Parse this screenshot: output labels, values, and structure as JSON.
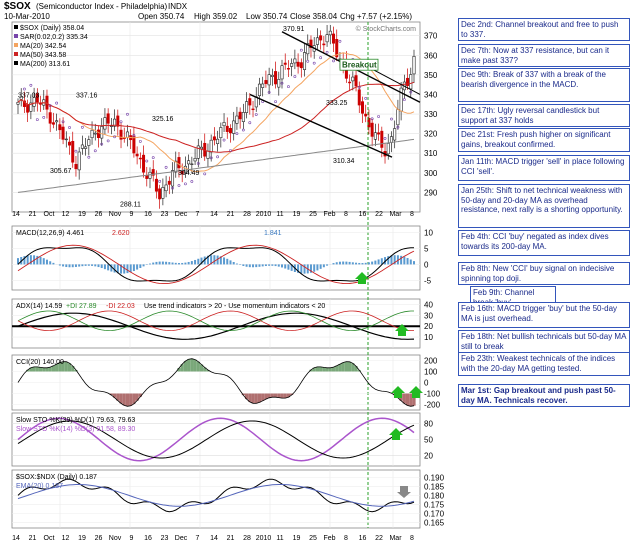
{
  "header": {
    "symbol": "$SOX",
    "name": "(Semiconductor Index - Philadelphia)",
    "exchange": "INDX",
    "date": "10-Mar-2010",
    "open": "Open 350.74",
    "high": "High 359.02",
    "low": "Low 350.74",
    "close": "Close 358.04",
    "chg": "Chg +7.57 (+2.15%)",
    "watermark": "© StockCharts.com"
  },
  "chart_data": [
    {
      "type": "candlestick",
      "legend": [
        "$SOX (Daily) 358.04",
        "SAR(0.02,0.2) 335.34",
        "MA(20) 342.54",
        "MA(50) 343.58",
        "MA(200) 313.61"
      ],
      "y_ticks": [
        290,
        300,
        310,
        320,
        330,
        340,
        350,
        360,
        370
      ],
      "ylim": [
        280,
        377
      ],
      "annotations": [
        "337.03",
        "337.16",
        "325.16",
        "305.67",
        "288.11",
        "304.49",
        "370.91",
        "333.25",
        "310.34",
        "Breakout"
      ],
      "colors": {
        "up": "#222222",
        "down": "#cc0000",
        "ma20": "#f4a460",
        "ma50": "#cc2222",
        "ma200": "#888888",
        "sar": "#7744aa"
      }
    },
    {
      "type": "line",
      "legend": [
        "MACD(12,26,9) 4.461",
        "2.620",
        "1.841"
      ],
      "y_ticks": [
        10,
        5,
        0,
        -5
      ]
    },
    {
      "type": "line",
      "legend": [
        "ADX(14) 14.59",
        "+DI 27.89",
        "-DI 22.03",
        "Use trend indicators > 20 - Use momentum indicators < 20"
      ],
      "y_ticks": [
        40,
        30,
        20,
        10
      ]
    },
    {
      "type": "area",
      "legend": [
        "CCI(20) 140.00"
      ],
      "y_ticks": [
        200,
        100,
        0,
        -100,
        -200
      ]
    },
    {
      "type": "line",
      "legend": [
        "Slow STO %K(39) %D(1) 79.63, 79.63",
        "Slow STO %K(14) %D(3) 91.58, 89.30"
      ],
      "y_ticks": [
        80,
        50,
        20
      ]
    },
    {
      "type": "line",
      "legend": [
        "$SOX:$NDX (Daily) 0.187",
        "EMA(20) 0.187"
      ],
      "y_ticks": [
        0.19,
        0.185,
        0.18,
        0.175,
        0.17,
        0.165
      ]
    }
  ],
  "x_labels": [
    "14",
    "21",
    "Oct",
    "12",
    "19",
    "26",
    "Nov",
    "9",
    "16",
    "23",
    "Dec",
    "7",
    "14",
    "21",
    "28",
    "2010",
    "11",
    "19",
    "25",
    "Feb",
    "8",
    "16",
    "22",
    "Mar",
    "8"
  ],
  "notes": [
    "Dec 2nd: Channel breakout and free to push to 337.",
    "Dec 7th: Now at 337 resistance, but can it make past 337?",
    "Dec 9th: Break of 337 with a break of the bearish divergence in the MACD.",
    "Dec 17th: Ugly reversal candlestick but support at 337 holds",
    "Dec 21st: Fresh push higher on significant gains, breakout confirmed.",
    "Jan 11th: MACD trigger 'sell' in place following CCI 'sell'.",
    "Jan 25th: Shift to net technical weakness with 50-day and 20-day MA as overhead resistance, next rally is a shorting opportunity.",
    "Feb 4th: CCI 'buy' negated as index dives towards its 200-day MA.",
    "Feb 8th: New 'CCI' buy signal on indecisive spinning top doji.",
    "Feb 9th: Channel break 'buy'.",
    "Feb 16th: MACD trigger 'buy' but the 50-day MA is just overhead.",
    "Feb 18th: Net bullish technicals but 50-day MA still to break",
    "Feb 23th: Weakest technicals of the indices with the 20-day MA getting tested.",
    "Mar 1st: Gap breakout and push past 50-day MA. Technicals recover."
  ]
}
